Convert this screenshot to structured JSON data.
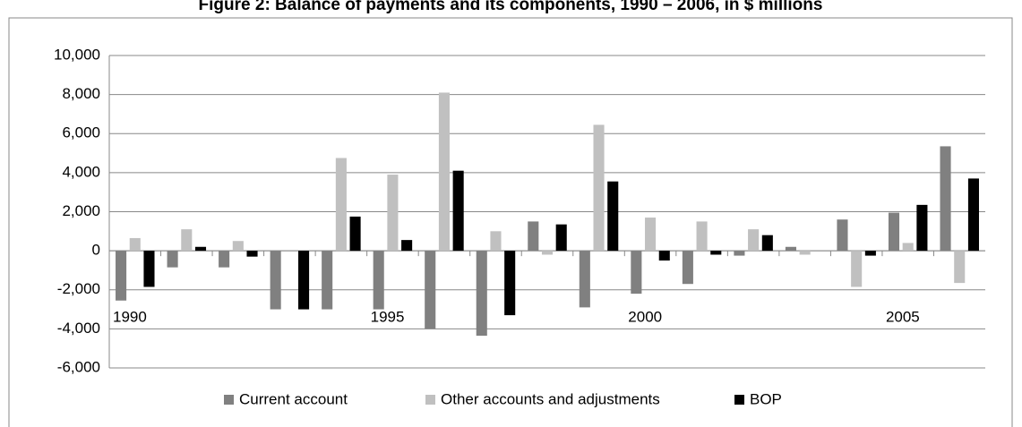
{
  "chart_data": {
    "type": "bar",
    "title": "Figure 2: Balance of payments and its components, 1990 – 2006, in $ millions",
    "categories": [
      "1990",
      null,
      null,
      null,
      null,
      "1995",
      null,
      null,
      null,
      null,
      "2000",
      null,
      null,
      null,
      null,
      "2005",
      null
    ],
    "series": [
      {
        "name": "Current account",
        "color": "#808080",
        "values": [
          -2550,
          -850,
          -850,
          -3000,
          -3000,
          -3000,
          -4000,
          -4350,
          1500,
          -2900,
          -2200,
          -1700,
          -250,
          200,
          1600,
          1950,
          5350
        ]
      },
      {
        "name": "Other accounts and adjustments",
        "color": "#c0c0c0",
        "values": [
          650,
          1100,
          500,
          0,
          4750,
          3900,
          8100,
          1000,
          -200,
          6450,
          1700,
          1500,
          1100,
          -200,
          -1850,
          400,
          -1650
        ]
      },
      {
        "name": "BOP",
        "color": "#000000",
        "values": [
          -1850,
          200,
          -300,
          -3000,
          1750,
          550,
          4100,
          -3300,
          1350,
          3550,
          -500,
          -200,
          800,
          0,
          -250,
          2350,
          3700
        ]
      }
    ],
    "ylim": [
      -6000,
      10000
    ],
    "yticks": [
      {
        "value": -6000,
        "label": "-6,000"
      },
      {
        "value": -4000,
        "label": "-4,000"
      },
      {
        "value": -2000,
        "label": "-2,000"
      },
      0,
      {
        "value": 2000,
        "label": "2,000"
      },
      {
        "value": 4000,
        "label": "4,000"
      },
      {
        "value": 6000,
        "label": "6,000"
      },
      {
        "value": 8000,
        "label": "8,000"
      },
      {
        "value": 10000,
        "label": "10,000"
      }
    ],
    "grid": true,
    "legend": "bottom"
  }
}
